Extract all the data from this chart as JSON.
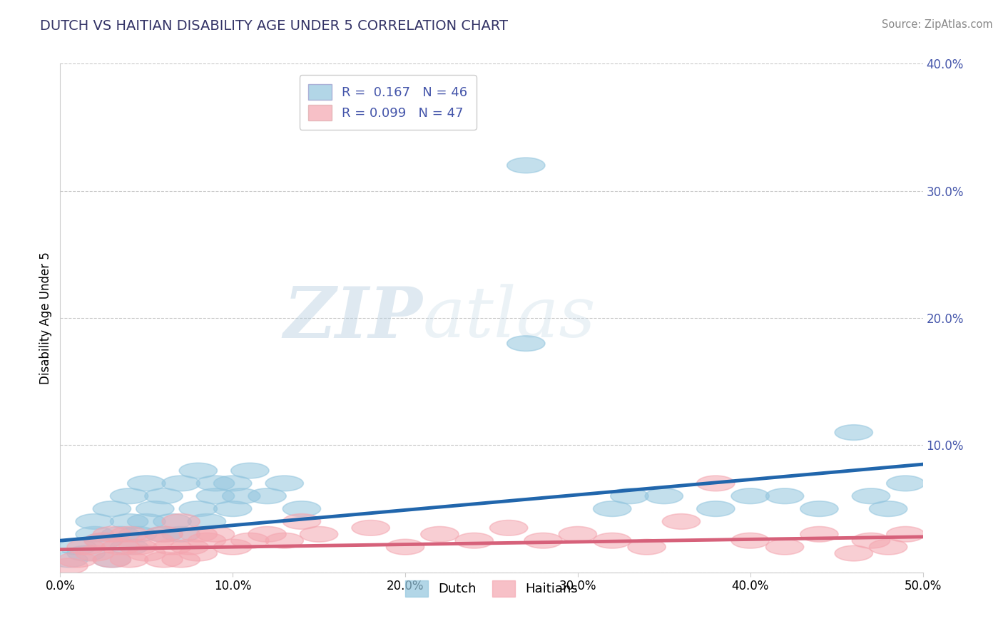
{
  "title": "DUTCH VS HAITIAN DISABILITY AGE UNDER 5 CORRELATION CHART",
  "source": "Source: ZipAtlas.com",
  "ylabel": "Disability Age Under 5",
  "xlim": [
    0.0,
    0.5
  ],
  "ylim": [
    0.0,
    0.4
  ],
  "xticks": [
    0.0,
    0.1,
    0.2,
    0.3,
    0.4,
    0.5
  ],
  "xtick_labels": [
    "0.0%",
    "10.0%",
    "20.0%",
    "30.0%",
    "40.0%",
    "50.0%"
  ],
  "yticks": [
    0.0,
    0.1,
    0.2,
    0.3,
    0.4
  ],
  "ytick_labels": [
    "",
    "10.0%",
    "20.0%",
    "30.0%",
    "40.0%"
  ],
  "dutch_color": "#92c5de",
  "haitian_color": "#f4a6b0",
  "dutch_line_color": "#2166ac",
  "haitian_line_color": "#d6617a",
  "dutch_R": 0.167,
  "dutch_N": 46,
  "haitian_R": 0.099,
  "haitian_N": 47,
  "title_color": "#333366",
  "axis_label_color": "#4455aa",
  "grid_color": "#bbbbbb",
  "watermark_color": "#d0e0f0",
  "dutch_x": [
    0.005,
    0.01,
    0.015,
    0.02,
    0.02,
    0.025,
    0.03,
    0.03,
    0.035,
    0.04,
    0.04,
    0.04,
    0.045,
    0.05,
    0.05,
    0.055,
    0.06,
    0.06,
    0.065,
    0.07,
    0.07,
    0.08,
    0.08,
    0.085,
    0.09,
    0.09,
    0.1,
    0.1,
    0.105,
    0.11,
    0.12,
    0.13,
    0.14,
    0.27,
    0.27,
    0.32,
    0.33,
    0.35,
    0.38,
    0.4,
    0.42,
    0.44,
    0.46,
    0.47,
    0.48,
    0.49
  ],
  "dutch_y": [
    0.01,
    0.02,
    0.015,
    0.03,
    0.04,
    0.025,
    0.01,
    0.05,
    0.03,
    0.02,
    0.04,
    0.06,
    0.03,
    0.04,
    0.07,
    0.05,
    0.03,
    0.06,
    0.04,
    0.03,
    0.07,
    0.05,
    0.08,
    0.04,
    0.06,
    0.07,
    0.05,
    0.07,
    0.06,
    0.08,
    0.06,
    0.07,
    0.05,
    0.32,
    0.18,
    0.05,
    0.06,
    0.06,
    0.05,
    0.06,
    0.06,
    0.05,
    0.11,
    0.06,
    0.05,
    0.07
  ],
  "haitian_x": [
    0.005,
    0.01,
    0.015,
    0.02,
    0.025,
    0.03,
    0.03,
    0.035,
    0.04,
    0.04,
    0.045,
    0.05,
    0.055,
    0.06,
    0.06,
    0.065,
    0.07,
    0.07,
    0.075,
    0.08,
    0.08,
    0.085,
    0.09,
    0.1,
    0.11,
    0.12,
    0.13,
    0.14,
    0.15,
    0.18,
    0.2,
    0.22,
    0.24,
    0.26,
    0.28,
    0.3,
    0.32,
    0.34,
    0.36,
    0.38,
    0.4,
    0.42,
    0.44,
    0.46,
    0.47,
    0.48,
    0.49
  ],
  "haitian_y": [
    0.005,
    0.01,
    0.02,
    0.015,
    0.025,
    0.01,
    0.03,
    0.02,
    0.01,
    0.03,
    0.02,
    0.015,
    0.025,
    0.01,
    0.03,
    0.02,
    0.01,
    0.04,
    0.02,
    0.03,
    0.015,
    0.025,
    0.03,
    0.02,
    0.025,
    0.03,
    0.025,
    0.04,
    0.03,
    0.035,
    0.02,
    0.03,
    0.025,
    0.035,
    0.025,
    0.03,
    0.025,
    0.02,
    0.04,
    0.07,
    0.025,
    0.02,
    0.03,
    0.015,
    0.025,
    0.02,
    0.03
  ],
  "dutch_trend_x": [
    0.0,
    0.5
  ],
  "dutch_trend_y": [
    0.025,
    0.085
  ],
  "haitian_trend_x": [
    0.0,
    0.5
  ],
  "haitian_trend_y": [
    0.018,
    0.028
  ]
}
